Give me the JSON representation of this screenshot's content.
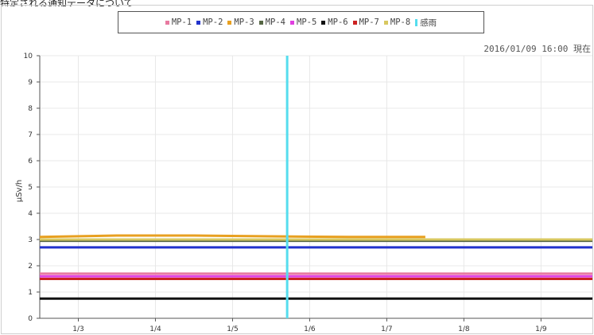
{
  "caption_fragment": "特定される通知データについて",
  "timestamp": "2016/01/09 16:00 現在",
  "chart_data": {
    "type": "line",
    "ylabel": "µSv/h",
    "ylim": [
      0,
      10
    ],
    "yticks": [
      0,
      1,
      2,
      3,
      4,
      5,
      6,
      7,
      8,
      9,
      10
    ],
    "x_start": "2016-01-02T12:00",
    "x_end": "2016-01-09T16:00",
    "xticks": [
      {
        "label": "1/3",
        "t": "2016-01-03T00:00"
      },
      {
        "label": "1/4",
        "t": "2016-01-04T00:00"
      },
      {
        "label": "1/5",
        "t": "2016-01-05T00:00"
      },
      {
        "label": "1/6",
        "t": "2016-01-06T00:00"
      },
      {
        "label": "1/7",
        "t": "2016-01-07T00:00"
      },
      {
        "label": "1/8",
        "t": "2016-01-08T00:00"
      },
      {
        "label": "1/9",
        "t": "2016-01-09T00:00"
      }
    ],
    "grid": true,
    "legend_position": "top-center",
    "series": [
      {
        "name": "MP-1",
        "color": "#e87aa0",
        "start": "2016-01-02T12:00",
        "end": "2016-01-09T16:00",
        "values": [
          1.7,
          1.7
        ]
      },
      {
        "name": "MP-2",
        "color": "#2233cc",
        "start": "2016-01-02T12:00",
        "end": "2016-01-09T16:00",
        "values": [
          2.7,
          2.7
        ]
      },
      {
        "name": "MP-3",
        "color": "#e8a020",
        "start": "2016-01-02T12:00",
        "end": "2016-01-07T12:00",
        "values": [
          3.1,
          3.15,
          3.15,
          3.12,
          3.1,
          3.1
        ]
      },
      {
        "name": "MP-4",
        "color": "#556644",
        "start": "2016-01-02T12:00",
        "end": "2016-01-09T16:00",
        "values": [
          2.95,
          2.95
        ]
      },
      {
        "name": "MP-5",
        "color": "#e040e0",
        "start": "2016-01-02T12:00",
        "end": "2016-01-09T16:00",
        "values": [
          1.6,
          1.6
        ]
      },
      {
        "name": "MP-6",
        "color": "#111111",
        "start": "2016-01-02T12:00",
        "end": "2016-01-09T16:00",
        "values": [
          0.75,
          0.75
        ]
      },
      {
        "name": "MP-7",
        "color": "#cc2222",
        "start": "2016-01-02T12:00",
        "end": "2016-01-09T16:00",
        "values": [
          1.5,
          1.5
        ]
      },
      {
        "name": "MP-8",
        "color": "#d8c860",
        "start": "2016-01-02T12:00",
        "end": "2016-01-09T16:00",
        "values": [
          3.0,
          3.0
        ]
      }
    ],
    "markers": [
      {
        "name": "感雨",
        "color": "#55ddee",
        "t": "2016-01-05T17:00"
      }
    ]
  }
}
